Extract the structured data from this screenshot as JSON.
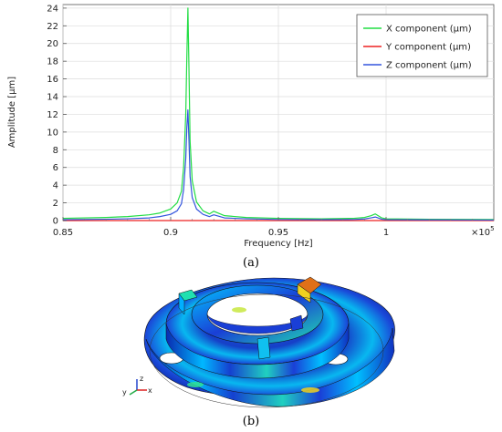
{
  "chart_data": {
    "type": "line",
    "xlabel": "Frequency [Hz]",
    "ylabel": "Amplitude [µm]",
    "xlim": [
      0.85,
      1.05
    ],
    "ylim": [
      0,
      24.4
    ],
    "x_multiplier": "×10",
    "x_multiplier_exp": "5",
    "xticks": [
      0.85,
      0.9,
      0.95,
      1
    ],
    "xtick_labels": [
      "0.85",
      "0.9",
      "0.95",
      "1"
    ],
    "yticks": [
      0,
      2,
      4,
      6,
      8,
      10,
      12,
      14,
      16,
      18,
      20,
      22,
      24
    ],
    "grid": true,
    "legend_position": "top-right",
    "series": [
      {
        "name": "X component (µm)",
        "color": "#22dd44",
        "x": [
          0.85,
          0.87,
          0.88,
          0.89,
          0.895,
          0.9,
          0.903,
          0.905,
          0.906,
          0.907,
          0.9075,
          0.908,
          0.9085,
          0.909,
          0.91,
          0.912,
          0.915,
          0.918,
          0.92,
          0.925,
          0.935,
          0.95,
          0.97,
          0.985,
          0.99,
          0.993,
          0.995,
          0.998,
          1.0,
          1.02,
          1.05
        ],
        "y": [
          0.25,
          0.35,
          0.45,
          0.65,
          0.85,
          1.3,
          2.0,
          3.3,
          6.0,
          12.0,
          18.5,
          24.0,
          17.0,
          9.0,
          4.5,
          2.1,
          1.1,
          0.75,
          1.05,
          0.55,
          0.35,
          0.25,
          0.2,
          0.25,
          0.35,
          0.55,
          0.75,
          0.3,
          0.2,
          0.15,
          0.12
        ]
      },
      {
        "name": "Y component (µm)",
        "color": "#ee2222",
        "x": [
          0.85,
          0.95,
          1.05
        ],
        "y": [
          0.0,
          0.0,
          0.0
        ]
      },
      {
        "name": "Z component (µm)",
        "color": "#3355dd",
        "x": [
          0.85,
          0.87,
          0.88,
          0.89,
          0.895,
          0.9,
          0.903,
          0.905,
          0.906,
          0.907,
          0.9075,
          0.908,
          0.9085,
          0.909,
          0.91,
          0.912,
          0.915,
          0.918,
          0.92,
          0.925,
          0.935,
          0.95,
          0.97,
          0.985,
          0.99,
          0.993,
          0.995,
          0.998,
          1.0,
          1.02,
          1.05
        ],
        "y": [
          0.1,
          0.15,
          0.2,
          0.3,
          0.45,
          0.7,
          1.1,
          1.9,
          3.5,
          7.0,
          10.5,
          12.5,
          9.0,
          5.0,
          2.6,
          1.3,
          0.7,
          0.45,
          0.65,
          0.3,
          0.2,
          0.12,
          0.1,
          0.12,
          0.18,
          0.3,
          0.4,
          0.15,
          0.1,
          0.08,
          0.06
        ]
      }
    ]
  },
  "captions": {
    "a": "(a)",
    "b": "(b)"
  },
  "model_view": {
    "description_colors": [
      "#1a3fd6",
      "#00c8ff",
      "#22dd88",
      "#f0e020",
      "#e06010"
    ],
    "axis_triad": {
      "z": "z",
      "x": "x",
      "y": "y"
    }
  }
}
